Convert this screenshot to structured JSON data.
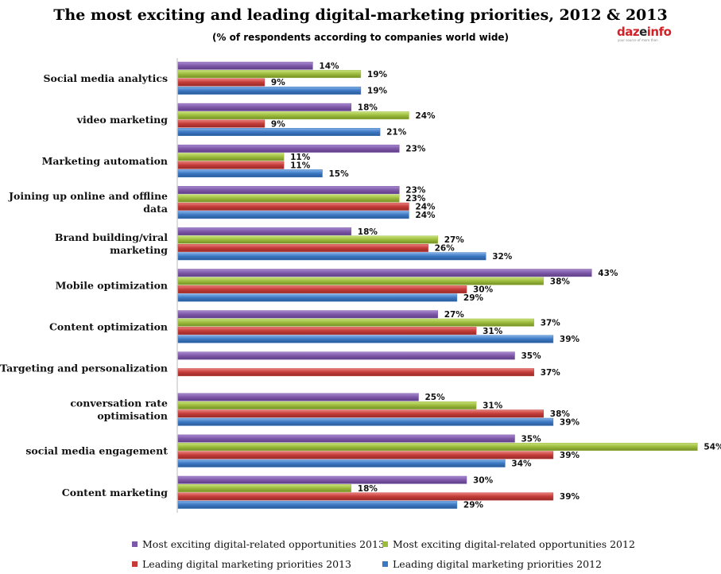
{
  "source": {
    "logo": "dazeinfo",
    "logo_tagline": "your source of more than"
  },
  "colors": {
    "purple": "#7E58A8",
    "green": "#9BBB3C",
    "red": "#C43B38",
    "blue": "#3B78C3"
  },
  "chart_data": {
    "type": "bar",
    "orientation": "horizontal",
    "title": "The most exciting and leading digital-marketing priorities, 2012 & 2013",
    "subtitle": "(% of respondents according to companies world wide)",
    "categories": [
      "Social media analytics",
      "video marketing",
      "Marketing automation",
      "Joining up online and offline data",
      "Brand building/viral marketing",
      "Mobile optimization",
      "Content optimization",
      "Targeting and personalization",
      "conversation rate optimisation",
      "social media engagement",
      "Content marketing"
    ],
    "category_lines": [
      [
        "Social media analytics"
      ],
      [
        "video marketing"
      ],
      [
        "Marketing automation"
      ],
      [
        "Joining up online and offline",
        "data"
      ],
      [
        "Brand building/viral",
        "marketing"
      ],
      [
        "Mobile optimization"
      ],
      [
        "Content optimization"
      ],
      [
        "Targeting and personalization"
      ],
      [
        "conversation rate",
        "optimisation"
      ],
      [
        "social media engagement"
      ],
      [
        "Content marketing"
      ]
    ],
    "series": [
      {
        "name": "Most exciting digital-related opportunities 2013",
        "color": "#7E58A8",
        "values": [
          14,
          18,
          23,
          23,
          18,
          43,
          27,
          35,
          25,
          35,
          30
        ]
      },
      {
        "name": "Most exciting digital-related opportunities 2012",
        "color": "#9BBB3C",
        "values": [
          19,
          24,
          11,
          23,
          27,
          38,
          37,
          null,
          31,
          54,
          18
        ]
      },
      {
        "name": "Leading digital marketing priorities 2013",
        "color": "#C43B38",
        "values": [
          9,
          9,
          11,
          24,
          26,
          30,
          31,
          37,
          38,
          39,
          39
        ]
      },
      {
        "name": "Leading digital marketing priorities 2012",
        "color": "#3B78C3",
        "values": [
          19,
          21,
          15,
          24,
          32,
          29,
          39,
          null,
          39,
          34,
          29
        ]
      }
    ],
    "value_suffix": "%",
    "xlim": [
      0,
      54
    ],
    "legend_position": "bottom",
    "grid": false
  }
}
